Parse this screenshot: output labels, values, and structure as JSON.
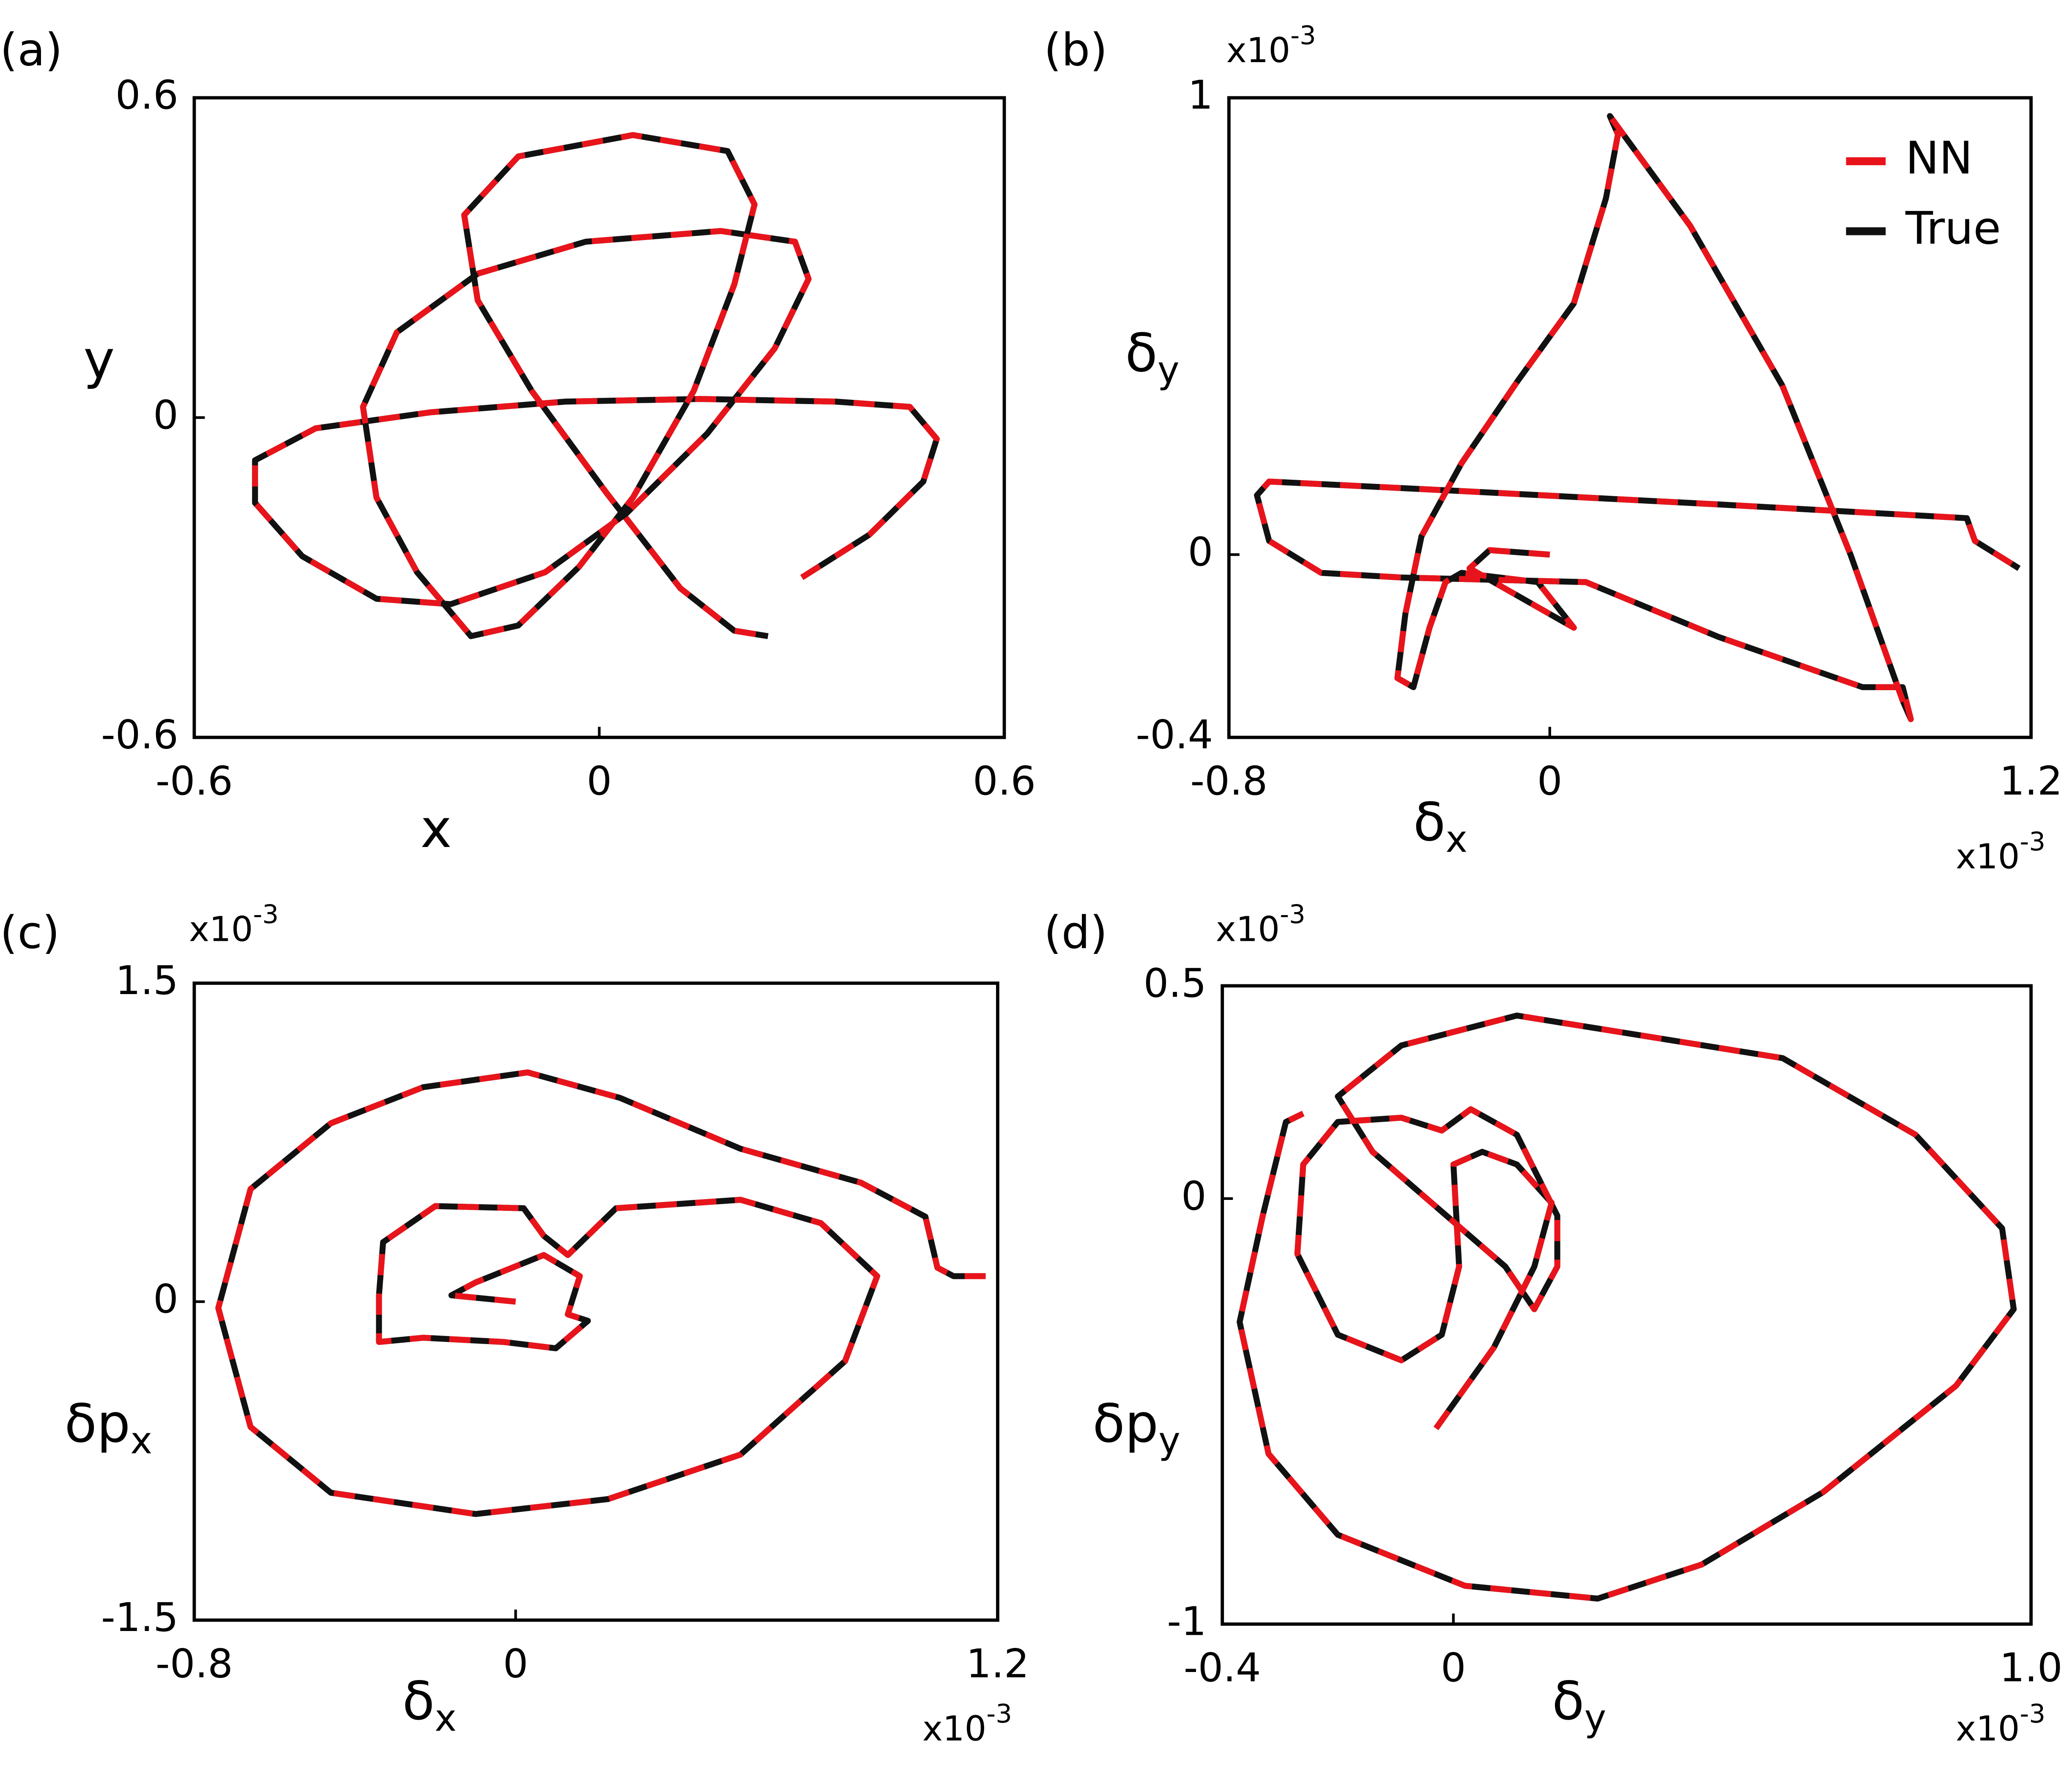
{
  "chart_data": [
    {
      "type": "line",
      "panel_label": "(a)",
      "xlabel": "x",
      "ylabel": "y",
      "xlim": [
        -0.6,
        0.6
      ],
      "ylim": [
        -0.6,
        0.6
      ],
      "xticks": [
        -0.6,
        0,
        0.6
      ],
      "yticks": [
        -0.6,
        0,
        0.6
      ],
      "series": [
        {
          "name": "NN",
          "color": "#e8141b",
          "dashed": true,
          "x": [
            0.3,
            0.4,
            0.48,
            0.5,
            0.46,
            0.35,
            0.15,
            -0.05,
            -0.25,
            -0.42,
            -0.51,
            -0.51,
            -0.44,
            -0.33,
            -0.22,
            -0.08,
            0.04,
            0.16,
            0.26,
            0.31,
            0.29,
            0.18,
            -0.02,
            -0.18,
            -0.3,
            -0.35,
            -0.33,
            -0.27,
            -0.19,
            -0.12,
            -0.03,
            0.05,
            0.14,
            0.2,
            0.23,
            0.19,
            0.05,
            -0.12,
            -0.2,
            -0.18,
            -0.1,
            0.01,
            0.12,
            0.2,
            0.25
          ],
          "values": [
            -0.3,
            -0.22,
            -0.12,
            -0.04,
            0.02,
            0.03,
            0.035,
            0.03,
            0.01,
            -0.02,
            -0.08,
            -0.16,
            -0.26,
            -0.34,
            -0.35,
            -0.29,
            -0.18,
            -0.03,
            0.13,
            0.26,
            0.33,
            0.35,
            0.33,
            0.27,
            0.16,
            0.02,
            -0.15,
            -0.29,
            -0.41,
            -0.39,
            -0.28,
            -0.15,
            0.05,
            0.25,
            0.4,
            0.5,
            0.53,
            0.49,
            0.38,
            0.22,
            0.05,
            -0.14,
            -0.32,
            -0.4,
            -0.41
          ]
        },
        {
          "name": "True",
          "color": "#111111",
          "dashed": false,
          "x": [
            0.3,
            0.4,
            0.48,
            0.5,
            0.46,
            0.35,
            0.15,
            -0.05,
            -0.25,
            -0.42,
            -0.51,
            -0.51,
            -0.44,
            -0.33,
            -0.22,
            -0.08,
            0.04,
            0.16,
            0.26,
            0.31,
            0.29,
            0.18,
            -0.02,
            -0.18,
            -0.3,
            -0.35,
            -0.33,
            -0.27,
            -0.19,
            -0.12,
            -0.03,
            0.05,
            0.14,
            0.2,
            0.23,
            0.19,
            0.05,
            -0.12,
            -0.2,
            -0.18,
            -0.1,
            0.01,
            0.12,
            0.2,
            0.25
          ],
          "values": [
            -0.3,
            -0.22,
            -0.12,
            -0.04,
            0.02,
            0.03,
            0.035,
            0.03,
            0.01,
            -0.02,
            -0.08,
            -0.16,
            -0.26,
            -0.34,
            -0.35,
            -0.29,
            -0.18,
            -0.03,
            0.13,
            0.26,
            0.33,
            0.35,
            0.33,
            0.27,
            0.16,
            0.02,
            -0.15,
            -0.29,
            -0.41,
            -0.39,
            -0.28,
            -0.15,
            0.05,
            0.25,
            0.4,
            0.5,
            0.53,
            0.49,
            0.38,
            0.22,
            0.05,
            -0.14,
            -0.32,
            -0.4,
            -0.41
          ]
        }
      ]
    },
    {
      "type": "line",
      "panel_label": "(b)",
      "xlabel": {
        "main": "δ",
        "sub": "x"
      },
      "ylabel": {
        "main": "δ",
        "sub": "y"
      },
      "x_multiplier": {
        "main": "x10",
        "sup": "-3"
      },
      "y_multiplier": {
        "main": "x10",
        "sup": "-3"
      },
      "xlim": [
        -0.8,
        1.2
      ],
      "ylim": [
        -0.4,
        1
      ],
      "xticks": [
        -0.8,
        0,
        1.2
      ],
      "yticks": [
        -0.4,
        0,
        1
      ],
      "legend": "upper right",
      "series": [
        {
          "name": "NN",
          "color": "#e8141b",
          "dashed": true,
          "x": [
            0.0,
            -0.15,
            -0.2,
            0.06,
            -0.03,
            -0.22,
            -0.26,
            -0.3,
            -0.34,
            -0.38,
            -0.36,
            -0.32,
            -0.22,
            -0.08,
            0.06,
            0.14,
            0.17,
            0.15,
            0.35,
            0.58,
            0.75,
            0.88,
            0.9,
            0.88,
            0.78,
            0.42,
            0.09,
            -0.37,
            -0.57,
            -0.7,
            -0.73,
            -0.7,
            -0.24,
            0.42,
            1.04,
            1.06,
            1.17
          ],
          "values": [
            0.0,
            0.01,
            -0.03,
            -0.16,
            -0.06,
            -0.04,
            -0.06,
            -0.16,
            -0.29,
            -0.27,
            -0.13,
            0.04,
            0.2,
            0.38,
            0.55,
            0.78,
            0.92,
            0.96,
            0.72,
            0.37,
            0.0,
            -0.32,
            -0.36,
            -0.29,
            -0.29,
            -0.18,
            -0.06,
            -0.05,
            -0.04,
            0.03,
            0.13,
            0.16,
            0.14,
            0.11,
            0.08,
            0.03,
            -0.03
          ]
        },
        {
          "name": "True",
          "color": "#111111",
          "dashed": false,
          "x": [
            0.0,
            -0.15,
            -0.2,
            0.06,
            -0.03,
            -0.22,
            -0.26,
            -0.3,
            -0.34,
            -0.38,
            -0.36,
            -0.32,
            -0.22,
            -0.08,
            0.06,
            0.14,
            0.17,
            0.15,
            0.35,
            0.58,
            0.75,
            0.88,
            0.9,
            0.88,
            0.78,
            0.42,
            0.09,
            -0.37,
            -0.57,
            -0.7,
            -0.73,
            -0.7,
            -0.24,
            0.42,
            1.04,
            1.06,
            1.17
          ],
          "values": [
            0.0,
            0.01,
            -0.03,
            -0.16,
            -0.06,
            -0.04,
            -0.06,
            -0.16,
            -0.29,
            -0.27,
            -0.13,
            0.04,
            0.2,
            0.38,
            0.55,
            0.78,
            0.92,
            0.96,
            0.72,
            0.37,
            0.0,
            -0.32,
            -0.36,
            -0.29,
            -0.29,
            -0.18,
            -0.06,
            -0.05,
            -0.04,
            0.03,
            0.13,
            0.16,
            0.14,
            0.11,
            0.08,
            0.03,
            -0.03
          ]
        }
      ]
    },
    {
      "type": "line",
      "panel_label": "(c)",
      "xlabel": {
        "main": "δ",
        "sub": "x"
      },
      "ylabel": {
        "main": "δp",
        "sub": "x"
      },
      "x_multiplier": {
        "main": "x10",
        "sup": "-3"
      },
      "y_multiplier": {
        "main": "x10",
        "sup": "-3"
      },
      "xlim": [
        -0.8,
        1.2
      ],
      "ylim": [
        -1.5,
        1.5
      ],
      "xticks": [
        -0.8,
        0,
        1.2
      ],
      "yticks": [
        -1.5,
        0,
        1.5
      ],
      "series": [
        {
          "name": "NN",
          "color": "#e8141b",
          "dashed": true,
          "x": [
            0.0,
            -0.16,
            -0.1,
            0.07,
            0.16,
            0.13,
            0.18,
            0.1,
            -0.03,
            -0.23,
            -0.34,
            -0.34,
            -0.33,
            -0.2,
            0.02,
            0.07,
            0.13,
            0.25,
            0.56,
            0.76,
            0.9,
            0.82,
            0.56,
            0.23,
            -0.1,
            -0.46,
            -0.66,
            -0.74,
            -0.66,
            -0.46,
            -0.23,
            0.03,
            0.26,
            0.56,
            0.86,
            1.02,
            1.05,
            1.09,
            1.17
          ],
          "values": [
            0.0,
            0.03,
            0.09,
            0.22,
            0.12,
            -0.06,
            -0.09,
            -0.22,
            -0.19,
            -0.17,
            -0.19,
            0.03,
            0.28,
            0.45,
            0.44,
            0.31,
            0.22,
            0.44,
            0.48,
            0.37,
            0.12,
            -0.28,
            -0.72,
            -0.93,
            -1.0,
            -0.9,
            -0.59,
            -0.03,
            0.53,
            0.84,
            1.01,
            1.08,
            0.96,
            0.72,
            0.56,
            0.4,
            0.16,
            0.12,
            0.12
          ]
        },
        {
          "name": "True",
          "color": "#111111",
          "dashed": false,
          "x": [
            0.0,
            -0.16,
            -0.1,
            0.07,
            0.16,
            0.13,
            0.18,
            0.1,
            -0.03,
            -0.23,
            -0.34,
            -0.34,
            -0.33,
            -0.2,
            0.02,
            0.07,
            0.13,
            0.25,
            0.56,
            0.76,
            0.9,
            0.82,
            0.56,
            0.23,
            -0.1,
            -0.46,
            -0.66,
            -0.74,
            -0.66,
            -0.46,
            -0.23,
            0.03,
            0.26,
            0.56,
            0.86,
            1.02,
            1.05,
            1.09,
            1.17
          ],
          "values": [
            0.0,
            0.03,
            0.09,
            0.22,
            0.12,
            -0.06,
            -0.09,
            -0.22,
            -0.19,
            -0.17,
            -0.19,
            0.03,
            0.28,
            0.45,
            0.44,
            0.31,
            0.22,
            0.44,
            0.48,
            0.37,
            0.12,
            -0.28,
            -0.72,
            -0.93,
            -1.0,
            -0.9,
            -0.59,
            -0.03,
            0.53,
            0.84,
            1.01,
            1.08,
            0.96,
            0.72,
            0.56,
            0.4,
            0.16,
            0.12,
            0.12
          ]
        }
      ]
    },
    {
      "type": "line",
      "panel_label": "(d)",
      "xlabel": {
        "main": "δ",
        "sub": "y"
      },
      "ylabel": {
        "main": "δp",
        "sub": "y"
      },
      "x_multiplier": {
        "main": "x10",
        "sup": "-3"
      },
      "y_multiplier": {
        "main": "x10",
        "sup": "-3"
      },
      "xlim": [
        -0.4,
        1
      ],
      "ylim": [
        -1,
        0.5
      ],
      "xticks": [
        -0.4,
        0,
        {
          "value": 1,
          "label": "1.0"
        }
      ],
      "yticks": [
        -1,
        0,
        0.5
      ],
      "series": [
        {
          "name": "NN",
          "color": "#e8141b",
          "dashed": true,
          "x": [
            -0.03,
            0.07,
            0.14,
            0.17,
            0.11,
            0.05,
            0.0,
            0.01,
            -0.02,
            -0.09,
            -0.2,
            -0.27,
            -0.26,
            -0.2,
            -0.09,
            -0.02,
            0.03,
            0.11,
            0.18,
            0.18,
            0.14,
            0.09,
            -0.14,
            -0.2,
            -0.09,
            0.11,
            0.34,
            0.57,
            0.8,
            0.95,
            0.97,
            0.87,
            0.64,
            0.43,
            0.25,
            0.02,
            -0.2,
            -0.32,
            -0.37,
            -0.33,
            -0.29,
            -0.26
          ],
          "values": [
            -0.54,
            -0.35,
            -0.16,
            -0.01,
            0.08,
            0.11,
            0.08,
            -0.16,
            -0.32,
            -0.38,
            -0.32,
            -0.13,
            0.08,
            0.18,
            0.19,
            0.16,
            0.21,
            0.15,
            -0.04,
            -0.16,
            -0.26,
            -0.16,
            0.11,
            0.24,
            0.36,
            0.43,
            0.38,
            0.33,
            0.15,
            -0.07,
            -0.26,
            -0.44,
            -0.69,
            -0.86,
            -0.94,
            -0.91,
            -0.79,
            -0.6,
            -0.29,
            -0.04,
            0.18,
            0.2
          ]
        },
        {
          "name": "True",
          "color": "#111111",
          "dashed": false,
          "x": [
            -0.03,
            0.07,
            0.14,
            0.17,
            0.11,
            0.05,
            0.0,
            0.01,
            -0.02,
            -0.09,
            -0.2,
            -0.27,
            -0.26,
            -0.2,
            -0.09,
            -0.02,
            0.03,
            0.11,
            0.18,
            0.18,
            0.14,
            0.09,
            -0.14,
            -0.2,
            -0.09,
            0.11,
            0.34,
            0.57,
            0.8,
            0.95,
            0.97,
            0.87,
            0.64,
            0.43,
            0.25,
            0.02,
            -0.2,
            -0.32,
            -0.37,
            -0.33,
            -0.29,
            -0.26
          ],
          "values": [
            -0.54,
            -0.35,
            -0.16,
            -0.01,
            0.08,
            0.11,
            0.08,
            -0.16,
            -0.32,
            -0.38,
            -0.32,
            -0.13,
            0.08,
            0.18,
            0.19,
            0.16,
            0.21,
            0.15,
            -0.04,
            -0.16,
            -0.26,
            -0.16,
            0.11,
            0.24,
            0.36,
            0.43,
            0.38,
            0.33,
            0.15,
            -0.07,
            -0.26,
            -0.44,
            -0.69,
            -0.86,
            -0.94,
            -0.91,
            -0.79,
            -0.6,
            -0.29,
            -0.04,
            0.18,
            0.2
          ]
        }
      ]
    }
  ]
}
